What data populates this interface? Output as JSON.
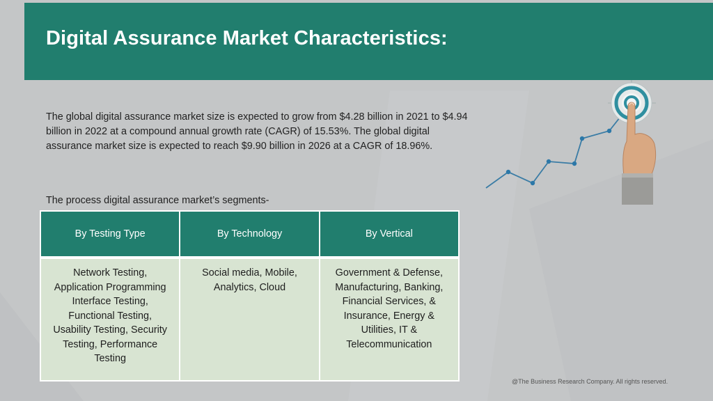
{
  "header": {
    "title": "Digital Assurance Market Characteristics:"
  },
  "intro": {
    "text": "The global digital assurance market size is expected to grow from $4.28 billion in 2021 to $4.94 billion in 2022 at a compound annual growth rate (CAGR) of 15.53%. The global digital assurance market size is expected to reach $9.90 billion in 2026 at a CAGR of 18.96%."
  },
  "segments": {
    "label": "The process digital assurance market’s segments-",
    "columns": [
      {
        "header": "By Testing Type",
        "content": "Network Testing, Application Programming Interface Testing, Functional Testing, Usability Testing, Security Testing, Performance Testing"
      },
      {
        "header": "By Technology",
        "content": "Social media, Mobile, Analytics, Cloud"
      },
      {
        "header": "By Vertical",
        "content": "Government & Defense, Manufacturing, Banking, Financial Services, & Insurance, Energy & Utilities, IT & Telecommunication"
      }
    ]
  },
  "illustration": {
    "icon": "target-growth-chart-icon"
  },
  "footer": {
    "copyright": "@The Business Research Company. All rights reserved."
  },
  "colors": {
    "header_bg": "#217e6e",
    "table_body_bg": "#d8e4d2",
    "page_bg": "#c4c6c7"
  }
}
